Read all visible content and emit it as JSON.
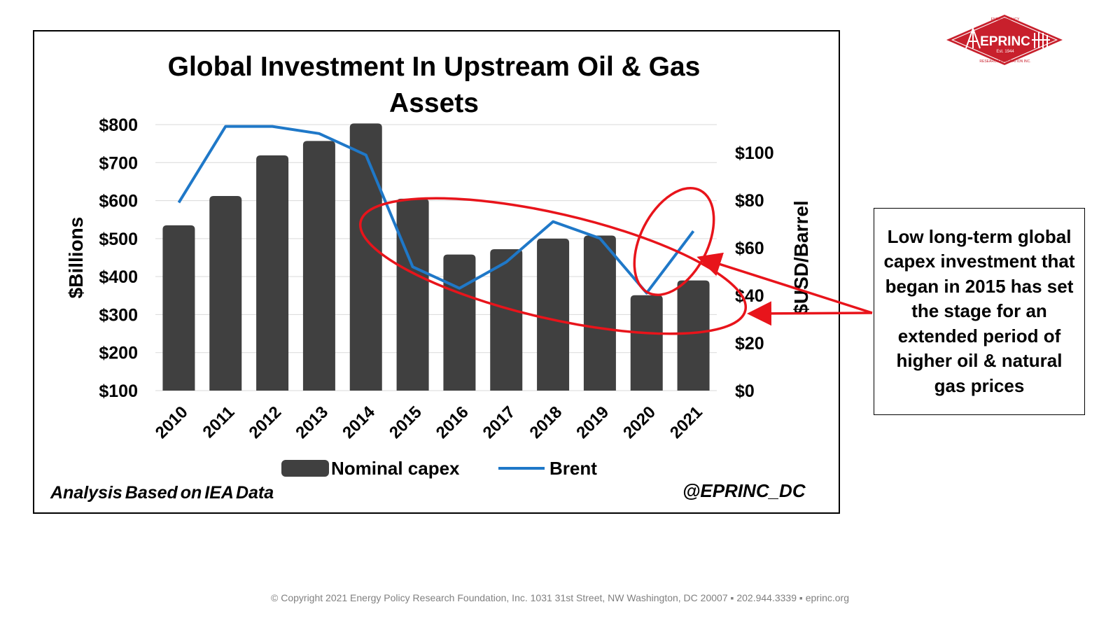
{
  "chart_data": {
    "type": "bar",
    "title": "Global Investment In Upstream Oil & Gas\nAssets",
    "categories": [
      "2010",
      "2011",
      "2012",
      "2013",
      "2014",
      "2015",
      "2016",
      "2017",
      "2018",
      "2019",
      "2020",
      "2021"
    ],
    "series": [
      {
        "name": "Nominal capex",
        "type": "bar",
        "axis": "left",
        "color": "#404040",
        "values": [
          535,
          612,
          719,
          757,
          803,
          605,
          458,
          472,
          500,
          508,
          351,
          390
        ]
      },
      {
        "name": "Brent",
        "type": "line",
        "axis": "right",
        "color": "#1f78c8",
        "values": [
          79,
          111,
          111,
          108,
          99,
          52,
          43,
          54,
          71,
          64,
          41,
          67
        ]
      }
    ],
    "ylabel": "$Billions",
    "y2label": "$USD/Barrel",
    "ylim": [
      100,
      800
    ],
    "y2lim": [
      0,
      110
    ],
    "yticks": [
      "$100",
      "$200",
      "$300",
      "$400",
      "$500",
      "$600",
      "$700",
      "$800"
    ],
    "y2ticks": [
      "$0",
      "$20",
      "$40",
      "$60",
      "$80",
      "$100"
    ],
    "grid": true,
    "legend": "bottom",
    "annotations": {
      "callout": "Low long-term global capex investment that began in 2015 has set the stage for an extended period of higher oil & natural gas prices",
      "source": "Analysis Based on IEA Data",
      "handle": "@EPRINC_DC"
    }
  },
  "colors": {
    "bar": "#404040",
    "line": "#1f78c8",
    "highlight": "#e8141b",
    "logo": "#c8202c"
  },
  "logo": {
    "name": "EPRINC",
    "est": "Est. 1944",
    "arc_top": "ENERGY POLICY",
    "arc_bottom": "RESEARCH FOUNDATION INC."
  },
  "footer": {
    "copyright": "© Copyright 2021 Energy Policy Research Foundation, Inc. 1031 31st Street, NW Washington, DC 20007 ▪ 202.944.3339 ▪ eprinc.org"
  }
}
